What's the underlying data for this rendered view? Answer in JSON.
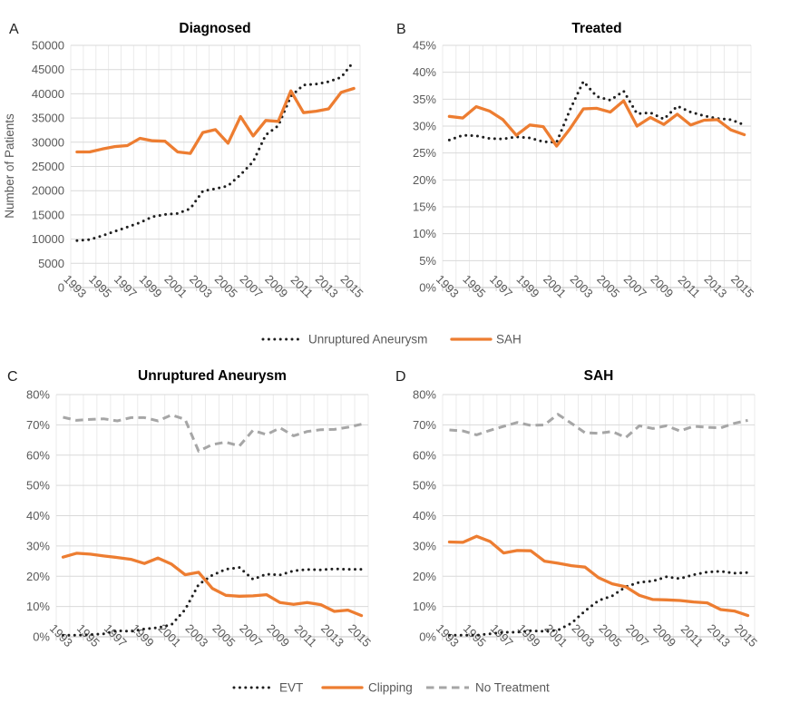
{
  "colors": {
    "accent_orange": "#ED7D31",
    "series_black": "#1F1F1F",
    "series_gray": "#A6A6A6",
    "grid_major": "#D9D9D9",
    "grid_minor": "#EBEBEB",
    "axis_line": "#CFCFCF",
    "tick_text": "#595959",
    "title_text": "#000000",
    "panel_letter_text": "#1F1F1F"
  },
  "chart_data": [
    {
      "panel": "A",
      "type": "line",
      "title": "Diagnosed",
      "ylabel": "Number of Patients",
      "ylim": [
        0,
        50000
      ],
      "ytick_step": 5000,
      "ytick_format": "number",
      "grid": true,
      "x": [
        1993,
        1994,
        1995,
        1996,
        1997,
        1998,
        1999,
        2000,
        2001,
        2002,
        2003,
        2004,
        2005,
        2006,
        2007,
        2008,
        2009,
        2010,
        2011,
        2012,
        2013,
        2014,
        2015
      ],
      "x_tick_labels": [
        1993,
        1995,
        1997,
        1999,
        2001,
        2003,
        2005,
        2007,
        2009,
        2011,
        2013,
        2015
      ],
      "series": [
        {
          "name": "Unruptured Aneurysm",
          "style": "dotted",
          "color": "#1F1F1F",
          "values": [
            9700,
            9900,
            10700,
            11600,
            12500,
            13400,
            14600,
            15100,
            15300,
            16300,
            19900,
            20400,
            21000,
            23300,
            26000,
            31500,
            33400,
            39500,
            41800,
            42000,
            42500,
            43400,
            46700
          ]
        },
        {
          "name": "SAH",
          "style": "solid",
          "color": "#ED7D31",
          "values": [
            28000,
            28000,
            28600,
            29100,
            29300,
            30800,
            30300,
            30200,
            28000,
            27700,
            32000,
            32600,
            29800,
            35300,
            31300,
            34500,
            34300,
            40600,
            36100,
            36400,
            36900,
            40300,
            41100
          ]
        }
      ]
    },
    {
      "panel": "B",
      "type": "line",
      "title": "Treated",
      "ylabel": "",
      "ylim": [
        0,
        45
      ],
      "ytick_step": 5,
      "ytick_format": "percent",
      "grid": true,
      "x": [
        1993,
        1994,
        1995,
        1996,
        1997,
        1998,
        1999,
        2000,
        2001,
        2002,
        2003,
        2004,
        2005,
        2006,
        2007,
        2008,
        2009,
        2010,
        2011,
        2012,
        2013,
        2014,
        2015
      ],
      "x_tick_labels": [
        1993,
        1995,
        1997,
        1999,
        2001,
        2003,
        2005,
        2007,
        2009,
        2011,
        2013,
        2015
      ],
      "series": [
        {
          "name": "Unruptured Aneurysm",
          "style": "dotted",
          "color": "#1F1F1F",
          "values": [
            27.4,
            28.3,
            28.2,
            27.7,
            27.6,
            28.0,
            27.8,
            27.1,
            27.0,
            33.0,
            38.3,
            35.5,
            34.8,
            36.5,
            32.3,
            32.5,
            31.3,
            33.7,
            32.6,
            31.9,
            31.4,
            31.2,
            30.2
          ]
        },
        {
          "name": "SAH",
          "style": "solid",
          "color": "#ED7D31",
          "values": [
            31.8,
            31.5,
            33.6,
            32.8,
            31.2,
            28.3,
            30.2,
            29.9,
            26.3,
            29.5,
            33.2,
            33.3,
            32.6,
            34.7,
            30.0,
            31.6,
            30.3,
            32.2,
            30.2,
            31.1,
            31.2,
            29.3,
            28.4
          ]
        }
      ]
    },
    {
      "panel": "C",
      "type": "line",
      "title": "Unruptured Aneurysm",
      "ylabel": "",
      "ylim": [
        0,
        80
      ],
      "ytick_step": 10,
      "ytick_format": "percent",
      "grid": true,
      "x": [
        1993,
        1994,
        1995,
        1996,
        1997,
        1998,
        1999,
        2000,
        2001,
        2002,
        2003,
        2004,
        2005,
        2006,
        2007,
        2008,
        2009,
        2010,
        2011,
        2012,
        2013,
        2014,
        2015
      ],
      "x_tick_labels": [
        1993,
        1995,
        1997,
        1999,
        2001,
        2003,
        2005,
        2007,
        2009,
        2011,
        2013,
        2015
      ],
      "series": [
        {
          "name": "No Treatment",
          "style": "dashed",
          "color": "#A6A6A6",
          "values": [
            72.5,
            71.5,
            71.8,
            72.0,
            71.3,
            72.4,
            72.4,
            71.3,
            73.3,
            71.8,
            61.3,
            63.5,
            64.3,
            63.0,
            68.2,
            66.8,
            69.0,
            66.4,
            67.8,
            68.4,
            68.5,
            69.2,
            70.2
          ]
        },
        {
          "name": "EVT",
          "style": "dotted",
          "color": "#1F1F1F",
          "values": [
            0.5,
            0.5,
            0.7,
            1.0,
            2.0,
            1.8,
            2.6,
            3.0,
            4.0,
            9.0,
            17.3,
            20.3,
            22.3,
            22.9,
            19.0,
            20.7,
            20.4,
            21.8,
            22.2,
            22.1,
            22.4,
            22.3,
            22.3
          ]
        },
        {
          "name": "Clipping",
          "style": "solid",
          "color": "#ED7D31",
          "values": [
            26.3,
            27.6,
            27.3,
            26.7,
            26.2,
            25.6,
            24.2,
            26.0,
            24.0,
            20.5,
            21.3,
            16.0,
            13.7,
            13.4,
            13.5,
            13.9,
            11.3,
            10.7,
            11.3,
            10.6,
            8.4,
            8.8,
            7.0
          ]
        }
      ]
    },
    {
      "panel": "D",
      "type": "line",
      "title": "SAH",
      "ylabel": "",
      "ylim": [
        0,
        80
      ],
      "ytick_step": 10,
      "ytick_format": "percent",
      "grid": true,
      "x": [
        1993,
        1994,
        1995,
        1996,
        1997,
        1998,
        1999,
        2000,
        2001,
        2002,
        2003,
        2004,
        2005,
        2006,
        2007,
        2008,
        2009,
        2010,
        2011,
        2012,
        2013,
        2014,
        2015
      ],
      "x_tick_labels": [
        1993,
        1995,
        1997,
        1999,
        2001,
        2003,
        2005,
        2007,
        2009,
        2011,
        2013,
        2015
      ],
      "series": [
        {
          "name": "No Treatment",
          "style": "dashed",
          "color": "#A6A6A6",
          "values": [
            68.3,
            68.0,
            66.7,
            68.2,
            69.5,
            70.8,
            69.8,
            70.0,
            73.5,
            70.5,
            67.4,
            67.2,
            67.8,
            65.8,
            69.7,
            68.8,
            69.7,
            68.0,
            69.5,
            69.2,
            69.0,
            70.5,
            71.5
          ]
        },
        {
          "name": "EVT",
          "style": "dotted",
          "color": "#1F1F1F",
          "values": [
            0.5,
            0.5,
            0.5,
            1.0,
            1.5,
            1.5,
            2.0,
            1.8,
            2.2,
            4.5,
            8.5,
            12.0,
            13.5,
            16.5,
            18.0,
            18.4,
            19.8,
            19.2,
            20.5,
            21.4,
            21.6,
            21.0,
            21.2
          ]
        },
        {
          "name": "Clipping",
          "style": "solid",
          "color": "#ED7D31",
          "values": [
            31.3,
            31.2,
            33.2,
            31.5,
            27.7,
            28.5,
            28.4,
            25.0,
            24.3,
            23.5,
            23.0,
            19.5,
            17.5,
            16.5,
            13.7,
            12.3,
            12.2,
            12.0,
            11.5,
            11.2,
            9.0,
            8.5,
            7.0
          ]
        }
      ]
    }
  ],
  "legends": [
    {
      "position": "below-top-row",
      "items": [
        {
          "label": "Unruptured Aneurysm",
          "style": "dotted",
          "color": "#1F1F1F"
        },
        {
          "label": "SAH",
          "style": "solid",
          "color": "#ED7D31"
        }
      ]
    },
    {
      "position": "below-bottom-row",
      "items": [
        {
          "label": "EVT",
          "style": "dotted",
          "color": "#1F1F1F"
        },
        {
          "label": "Clipping",
          "style": "solid",
          "color": "#ED7D31"
        },
        {
          "label": "No Treatment",
          "style": "dashed",
          "color": "#A6A6A6"
        }
      ]
    }
  ]
}
